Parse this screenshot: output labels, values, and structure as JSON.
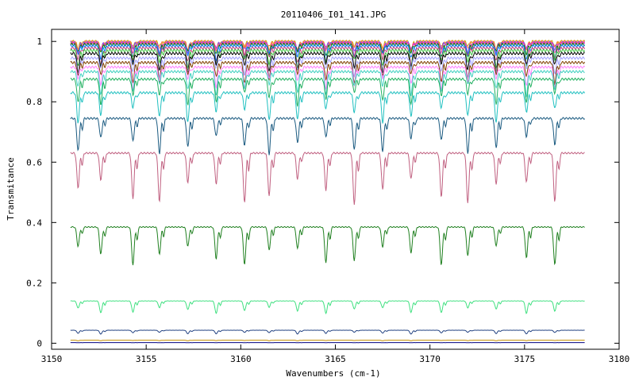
{
  "chart_data": {
    "type": "line",
    "title": "20110406_I01_141.JPG",
    "xlabel": "Wavenumbers (cm-1)",
    "ylabel": "Transmitance",
    "xlim": [
      3150,
      3180
    ],
    "ylim": [
      -0.02,
      1.04
    ],
    "x_ticks": [
      3150,
      3155,
      3160,
      3165,
      3170,
      3175,
      3180
    ],
    "y_ticks": [
      0,
      0.2,
      0.4,
      0.6,
      0.8,
      1
    ],
    "x_tick_labels": [
      "3150",
      "3155",
      "3160",
      "3165",
      "3170",
      "3175",
      "3180"
    ],
    "y_tick_labels": [
      "0",
      "0.2",
      "0.4",
      "0.6",
      "0.8",
      "1"
    ],
    "grid": false,
    "legend": "none",
    "x_range_data": [
      3151,
      3178.2
    ],
    "dip_positions": [
      3151.4,
      3152.6,
      3154.3,
      3155.7,
      3157.2,
      3158.7,
      3160.2,
      3161.5,
      3163.0,
      3164.5,
      3166.0,
      3167.5,
      3169.0,
      3170.6,
      3172.0,
      3173.5,
      3175.1,
      3176.6
    ],
    "series": [
      {
        "baseline": 1.0,
        "depth_frac": 0.03,
        "color": "#c8a000"
      },
      {
        "baseline": 0.998,
        "depth_frac": 0.03,
        "color": "#ff8040"
      },
      {
        "baseline": 0.996,
        "depth_frac": 0.035,
        "color": "#8040ff"
      },
      {
        "baseline": 0.994,
        "depth_frac": 0.04,
        "color": "#ff40a0"
      },
      {
        "baseline": 0.99,
        "depth_frac": 0.045,
        "color": "#008000"
      },
      {
        "baseline": 0.985,
        "depth_frac": 0.05,
        "color": "#0080ff"
      },
      {
        "baseline": 0.978,
        "depth_frac": 0.055,
        "color": "#c04080"
      },
      {
        "baseline": 0.97,
        "depth_frac": 0.06,
        "color": "#40c040"
      },
      {
        "baseline": 0.96,
        "depth_frac": 0.065,
        "color": "#000000"
      },
      {
        "baseline": 0.945,
        "depth_frac": 0.07,
        "color": "#a0a0ff"
      },
      {
        "baseline": 0.93,
        "depth_frac": 0.075,
        "color": "#804000"
      },
      {
        "baseline": 0.915,
        "depth_frac": 0.08,
        "color": "#ff80ff"
      },
      {
        "baseline": 0.9,
        "depth_frac": 0.09,
        "color": "#40d0c0"
      },
      {
        "baseline": 0.875,
        "depth_frac": 0.1,
        "color": "#20b060"
      },
      {
        "baseline": 0.83,
        "depth_frac": 0.12,
        "color": "#20c0c0"
      },
      {
        "baseline": 0.745,
        "depth_frac": 0.16,
        "color": "#1a5a80"
      },
      {
        "baseline": 0.63,
        "depth_frac": 0.27,
        "color": "#c06080"
      },
      {
        "baseline": 0.385,
        "depth_frac": 0.33,
        "color": "#208020"
      },
      {
        "baseline": 0.14,
        "depth_frac": 0.3,
        "color": "#40e080"
      },
      {
        "baseline": 0.043,
        "depth_frac": 0.3,
        "color": "#204080"
      },
      {
        "baseline": 0.01,
        "depth_frac": 0.2,
        "color": "#c89000"
      },
      {
        "baseline": 0.002,
        "depth_frac": 0.1,
        "color": "#000080"
      }
    ]
  }
}
